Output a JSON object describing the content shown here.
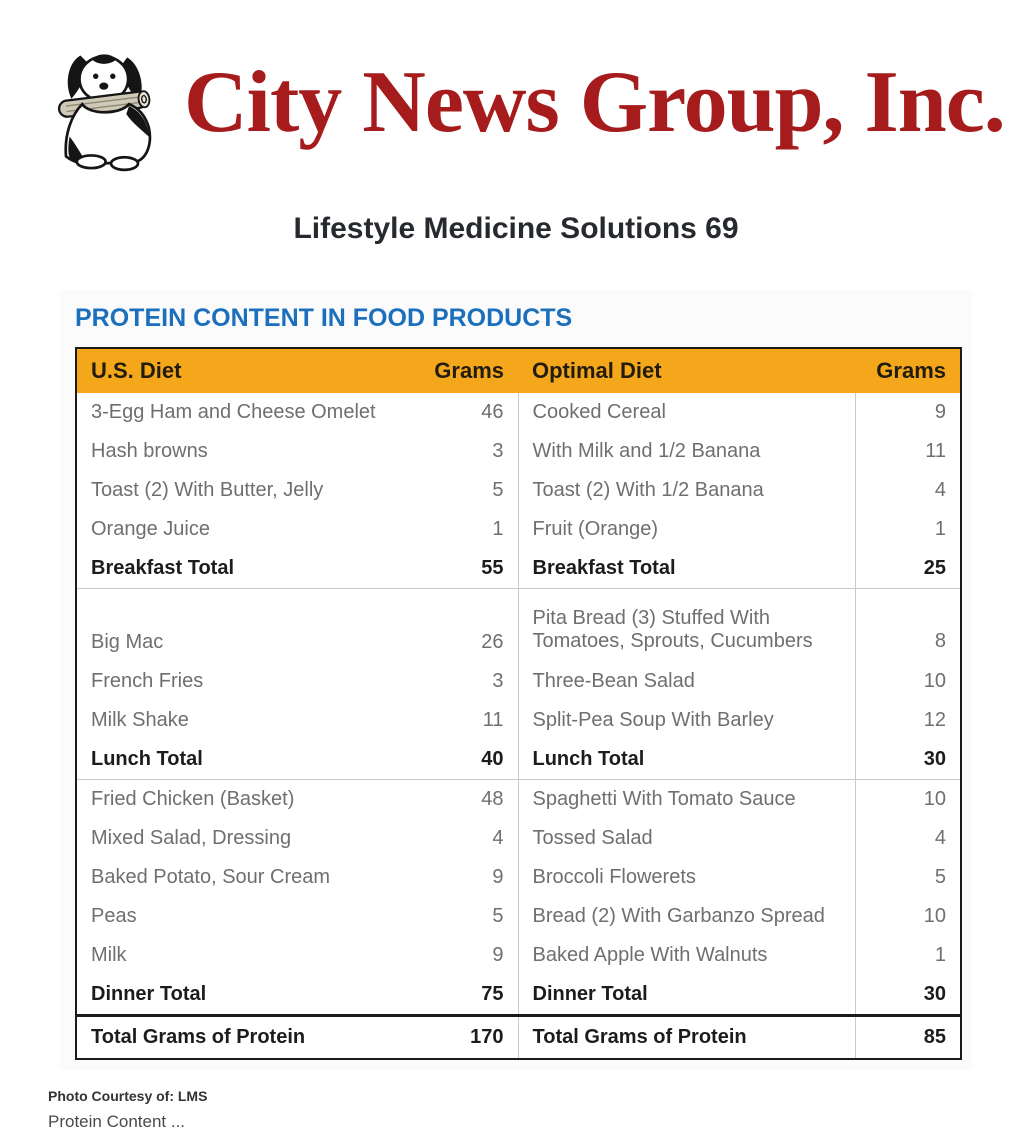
{
  "brand": {
    "name": "City News Group, Inc.",
    "color": "#a61b1b",
    "logo_icon": "dog-with-newspaper"
  },
  "subtitle": "Lifestyle Medicine Solutions 69",
  "table": {
    "title": "PROTEIN CONTENT IN FOOD PRODUCTS",
    "title_color": "#1b6fbd",
    "header_bg": "#f5a71c",
    "columns": [
      "U.S. Diet",
      "Grams",
      "Optimal Diet",
      "Grams"
    ],
    "rows": [
      {
        "type": "item",
        "l": "3-Egg Ham and Cheese Omelet",
        "lv": "46",
        "r": "Cooked Cereal",
        "rv": "9"
      },
      {
        "type": "item",
        "l": "Hash browns",
        "lv": "3",
        "r": "With Milk and 1/2 Banana",
        "rv": "11"
      },
      {
        "type": "item",
        "l": "Toast (2) With Butter, Jelly",
        "lv": "5",
        "r": "Toast (2) With 1/2 Banana",
        "rv": "4"
      },
      {
        "type": "item",
        "l": "Orange Juice",
        "lv": "1",
        "r": "Fruit (Orange)",
        "rv": "1"
      },
      {
        "type": "total",
        "l": "Breakfast Total",
        "lv": "55",
        "r": "Breakfast Total",
        "rv": "25"
      },
      {
        "type": "item",
        "tall": true,
        "l": "Big Mac",
        "lv": "26",
        "r": "Pita Bread (3) Stuffed With\nTomatoes, Sprouts, Cucumbers",
        "rv": "8"
      },
      {
        "type": "item",
        "l": "French Fries",
        "lv": "3",
        "r": "Three-Bean Salad",
        "rv": "10"
      },
      {
        "type": "item",
        "l": "Milk Shake",
        "lv": "11",
        "r": "Split-Pea Soup With Barley",
        "rv": "12"
      },
      {
        "type": "total",
        "l": "Lunch Total",
        "lv": "40",
        "r": "Lunch Total",
        "rv": "30"
      },
      {
        "type": "item",
        "l": "Fried Chicken (Basket)",
        "lv": "48",
        "r": "Spaghetti With Tomato Sauce",
        "rv": "10"
      },
      {
        "type": "item",
        "l": "Mixed Salad, Dressing",
        "lv": "4",
        "r": "Tossed Salad",
        "rv": "4"
      },
      {
        "type": "item",
        "l": "Baked Potato, Sour Cream",
        "lv": "9",
        "r": "Broccoli Flowerets",
        "rv": "5"
      },
      {
        "type": "item",
        "l": "Peas",
        "lv": "5",
        "r": "Bread (2) With Garbanzo Spread",
        "rv": "10"
      },
      {
        "type": "item",
        "l": "Milk",
        "lv": "9",
        "r": "Baked Apple With Walnuts",
        "rv": "1"
      },
      {
        "type": "total",
        "l": "Dinner Total",
        "lv": "75",
        "r": "Dinner Total",
        "rv": "30"
      },
      {
        "type": "grand",
        "l": "Total Grams of Protein",
        "lv": "170",
        "r": "Total Grams of Protein",
        "rv": "85"
      }
    ]
  },
  "footer": {
    "credit": "Photo Courtesy of: LMS",
    "caption": "Protein Content ..."
  }
}
